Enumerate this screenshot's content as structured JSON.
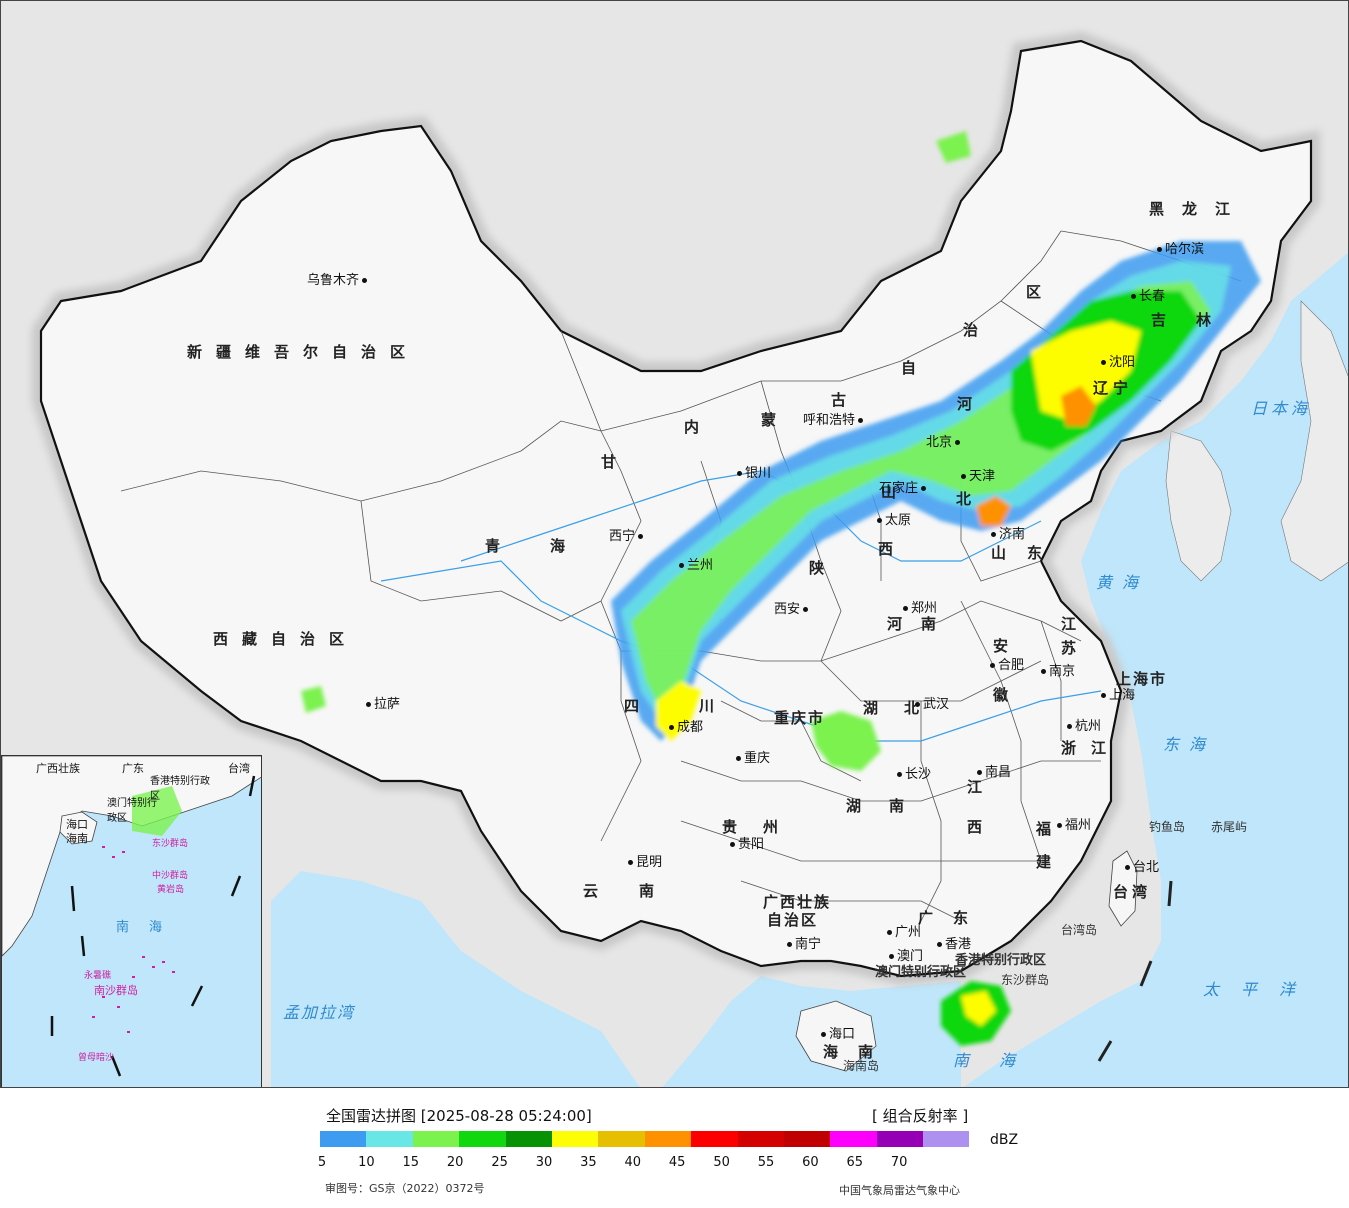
{
  "legend": {
    "title": "全国雷达拼图 [2025-08-28 05:24:00]",
    "product": "[ 组合反射率 ]",
    "unit": "dBZ",
    "ticks": [
      "5",
      "10",
      "15",
      "20",
      "25",
      "30",
      "35",
      "40",
      "45",
      "50",
      "55",
      "60",
      "65",
      "70"
    ],
    "colors": [
      "#3d9cf0",
      "#69e6e6",
      "#7cf24f",
      "#11d70f",
      "#069204",
      "#fdfd05",
      "#e6c000",
      "#fd9100",
      "#fc0000",
      "#d40000",
      "#c00000",
      "#fd00fc",
      "#9600b4",
      "#ae90f0"
    ],
    "approval": "审图号：GS京（2022）0372号",
    "agency": "中国气象局雷达气象中心"
  },
  "provinces": [
    "新疆维吾尔自治区",
    "西藏自治区",
    "青海",
    "甘",
    "内",
    "蒙",
    "古",
    "自",
    "治",
    "区",
    "黑龙江",
    "吉",
    "林",
    "辽",
    "宁",
    "河",
    "北",
    "山",
    "西",
    "陕",
    "四",
    "川",
    "重庆市",
    "湖",
    "北",
    "湖",
    "南",
    "贵",
    "州",
    "云",
    "南",
    "广西壮族",
    "自治区",
    "广",
    "东",
    "江",
    "西",
    "福",
    "建",
    "浙",
    "江",
    "安",
    "徽",
    "江",
    "苏",
    "上海市",
    "山",
    "东",
    "河",
    "南",
    "台湾",
    "海",
    "南"
  ],
  "cities": [
    "乌鲁木齐",
    "拉萨",
    "西宁",
    "兰州",
    "银川",
    "呼和浩特",
    "北京",
    "天津",
    "石家庄",
    "太原",
    "济南",
    "郑州",
    "西安",
    "成都",
    "重庆",
    "贵阳",
    "昆明",
    "南宁",
    "广州",
    "澳门",
    "香港",
    "海口",
    "长沙",
    "武汉",
    "南昌",
    "合肥",
    "南京",
    "上海",
    "杭州",
    "福州",
    "台北",
    "沈阳",
    "长春",
    "哈尔滨"
  ],
  "seas": [
    "日本海",
    "黄海",
    "东海",
    "太平洋",
    "孟加拉湾",
    "南海"
  ],
  "islands": [
    "钓鱼岛",
    "赤尾屿",
    "台湾岛",
    "东沙群岛",
    "海南岛",
    "香港特别行政区",
    "澳门特别行政区"
  ],
  "inset": {
    "labels": [
      "广西壮族",
      "广东",
      "台湾",
      "香港特别行政区",
      "澳门特别行政区",
      "海口",
      "海南",
      "南海",
      "东沙群岛",
      "中沙群岛",
      "黄岩岛",
      "永暑礁",
      "南沙群岛",
      "曾母暗沙"
    ]
  }
}
